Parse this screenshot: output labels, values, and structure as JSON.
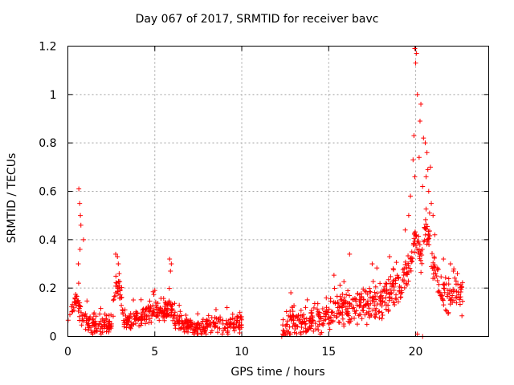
{
  "chart_data": {
    "type": "scatter",
    "title": "Day 067 of 2017, SRMTID for receiver bavc",
    "xlabel": "GPS time / hours",
    "ylabel": "SRMTID / TECUs",
    "xlim": [
      0,
      24.2
    ],
    "ylim": [
      0,
      1.2
    ],
    "xticks": [
      0,
      5,
      10,
      15,
      20
    ],
    "xtick_labels": [
      "0",
      "5",
      "10",
      "15",
      "20"
    ],
    "yticks": [
      0,
      0.2,
      0.4,
      0.6,
      0.8,
      1.0,
      1.2
    ],
    "ytick_labels": [
      "0",
      "0.2",
      "0.4",
      "0.6",
      "0.8",
      "1",
      "1.2"
    ],
    "grid": true,
    "marker": "+",
    "series": [
      {
        "name": "SRMTID",
        "color": "#ff0000",
        "segments": [
          {
            "x_start": 0.0,
            "x_end": 10.0,
            "profile": [
              [
                0.0,
                0.08
              ],
              [
                0.3,
                0.12
              ],
              [
                0.5,
                0.16
              ],
              [
                0.8,
                0.07
              ],
              [
                1.5,
                0.05
              ],
              [
                2.5,
                0.05
              ],
              [
                2.8,
                0.22
              ],
              [
                3.0,
                0.18
              ],
              [
                3.2,
                0.06
              ],
              [
                4.0,
                0.08
              ],
              [
                5.0,
                0.11
              ],
              [
                5.4,
                0.1
              ],
              [
                5.9,
                0.12
              ],
              [
                6.3,
                0.06
              ],
              [
                7.0,
                0.04
              ],
              [
                7.5,
                0.03
              ],
              [
                8.5,
                0.05
              ],
              [
                9.0,
                0.05
              ],
              [
                10.0,
                0.05
              ]
            ],
            "spread": 0.035
          },
          {
            "x_start": 12.3,
            "x_end": 22.7,
            "profile": [
              [
                12.3,
                0.02
              ],
              [
                13.0,
                0.06
              ],
              [
                14.0,
                0.07
              ],
              [
                15.0,
                0.09
              ],
              [
                16.0,
                0.12
              ],
              [
                17.0,
                0.13
              ],
              [
                18.0,
                0.14
              ],
              [
                19.0,
                0.2
              ],
              [
                19.6,
                0.28
              ],
              [
                20.0,
                0.4
              ],
              [
                20.3,
                0.32
              ],
              [
                20.6,
                0.45
              ],
              [
                21.0,
                0.3
              ],
              [
                21.5,
                0.18
              ],
              [
                22.0,
                0.17
              ],
              [
                22.7,
                0.16
              ]
            ],
            "spread": 0.06
          }
        ],
        "peaks": [
          {
            "x": 0.63,
            "y": 0.61
          },
          {
            "x": 0.68,
            "y": 0.55
          },
          {
            "x": 0.72,
            "y": 0.5
          },
          {
            "x": 0.75,
            "y": 0.46
          },
          {
            "x": 0.7,
            "y": 0.36
          },
          {
            "x": 0.9,
            "y": 0.4
          },
          {
            "x": 0.6,
            "y": 0.3
          },
          {
            "x": 0.62,
            "y": 0.22
          },
          {
            "x": 2.75,
            "y": 0.34
          },
          {
            "x": 2.85,
            "y": 0.33
          },
          {
            "x": 2.9,
            "y": 0.3
          },
          {
            "x": 2.95,
            "y": 0.26
          },
          {
            "x": 5.85,
            "y": 0.32
          },
          {
            "x": 5.95,
            "y": 0.3
          },
          {
            "x": 5.9,
            "y": 0.27
          },
          {
            "x": 5.0,
            "y": 0.19
          },
          {
            "x": 19.95,
            "y": 1.19
          },
          {
            "x": 20.05,
            "y": 1.17
          },
          {
            "x": 20.0,
            "y": 1.13
          },
          {
            "x": 20.1,
            "y": 1.0
          },
          {
            "x": 20.3,
            "y": 0.96
          },
          {
            "x": 20.45,
            "y": 0.82
          },
          {
            "x": 20.55,
            "y": 0.8
          },
          {
            "x": 19.9,
            "y": 0.83
          },
          {
            "x": 20.25,
            "y": 0.89
          },
          {
            "x": 20.65,
            "y": 0.76
          },
          {
            "x": 20.7,
            "y": 0.69
          },
          {
            "x": 20.85,
            "y": 0.7
          },
          {
            "x": 20.6,
            "y": 0.66
          },
          {
            "x": 19.85,
            "y": 0.73
          },
          {
            "x": 19.95,
            "y": 0.66
          },
          {
            "x": 20.2,
            "y": 0.74
          },
          {
            "x": 20.4,
            "y": 0.62
          },
          {
            "x": 20.75,
            "y": 0.6
          },
          {
            "x": 20.9,
            "y": 0.55
          },
          {
            "x": 19.7,
            "y": 0.58
          },
          {
            "x": 20.8,
            "y": 0.51
          },
          {
            "x": 19.6,
            "y": 0.5
          },
          {
            "x": 21.0,
            "y": 0.5
          },
          {
            "x": 20.5,
            "y": 0.45
          },
          {
            "x": 19.4,
            "y": 0.44
          },
          {
            "x": 21.1,
            "y": 0.42
          },
          {
            "x": 22.0,
            "y": 0.3
          },
          {
            "x": 21.6,
            "y": 0.32
          },
          {
            "x": 16.2,
            "y": 0.34
          },
          {
            "x": 17.5,
            "y": 0.3
          },
          {
            "x": 18.5,
            "y": 0.33
          },
          {
            "x": 22.4,
            "y": 0.26
          },
          {
            "x": 20.1,
            "y": 0.01
          },
          {
            "x": 20.4,
            "y": 0.0
          },
          {
            "x": 12.3,
            "y": 0.0
          }
        ]
      }
    ]
  }
}
